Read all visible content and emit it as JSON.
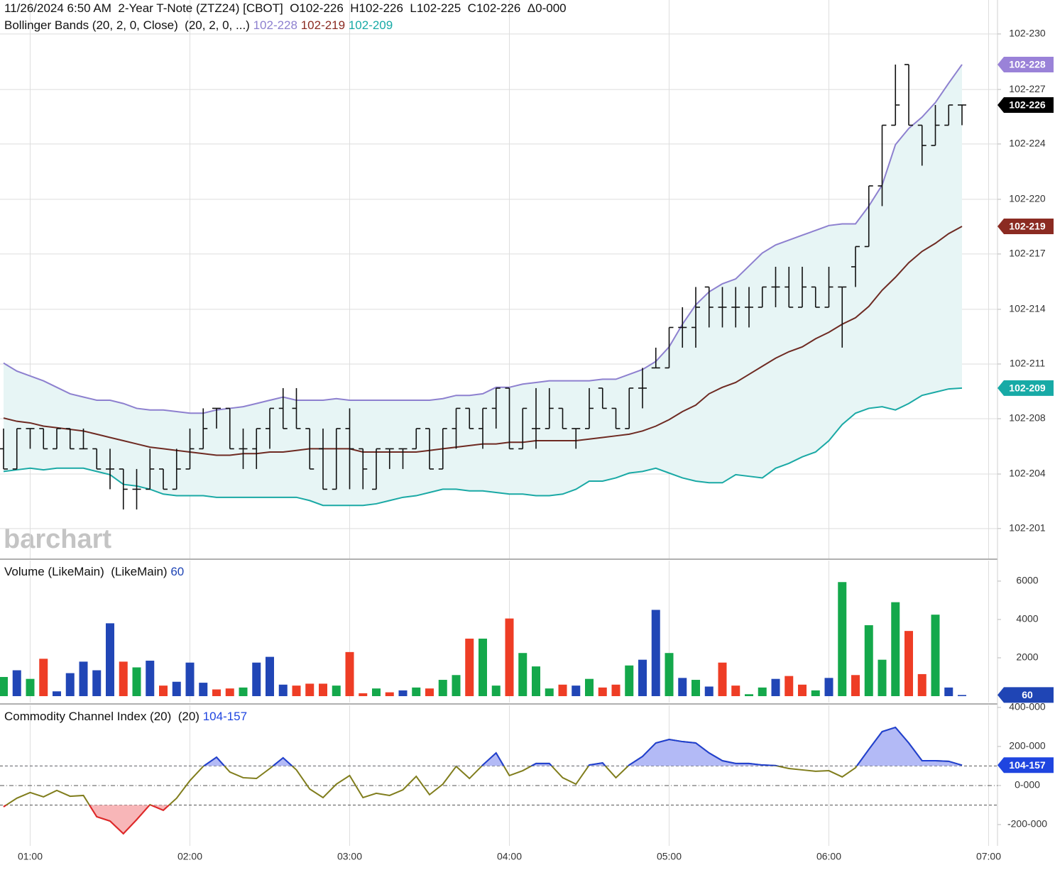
{
  "chart_data": [
    {
      "type": "ohlc",
      "title": "11/26/2024 6:50 AM  2-Year T-Note (ZTZ24) [CBOT]  O102-226  H102-226  L102-225  C102-226  Δ0-000",
      "subtitle": "Bollinger Bands (20, 2, 0, Close)  (20, 2, 0, ...)",
      "watermark": "barchart",
      "x": [
        50,
        55,
        60,
        65,
        70,
        75,
        80,
        85,
        90,
        95,
        100,
        105,
        110,
        115,
        120,
        125,
        130,
        135,
        140,
        145,
        150,
        155,
        160,
        165,
        170,
        175,
        180,
        185,
        190,
        195,
        200,
        205,
        210,
        215,
        220,
        225,
        230,
        235,
        240,
        245,
        250,
        255,
        260,
        265,
        270,
        275,
        280,
        285,
        290,
        295,
        300,
        305,
        310,
        315,
        320,
        325,
        330,
        335,
        340,
        345,
        350,
        355,
        360,
        365,
        370,
        375,
        380,
        385,
        390,
        395,
        400,
        405,
        410
      ],
      "xlim": [
        48.667,
        423.333
      ],
      "xticks": [
        {
          "value": 60,
          "label": "01:00"
        },
        {
          "value": 120,
          "label": "02:00"
        },
        {
          "value": 180,
          "label": "03:00"
        },
        {
          "value": 240,
          "label": "04:00"
        },
        {
          "value": 300,
          "label": "05:00"
        },
        {
          "value": 360,
          "label": "06:00"
        },
        {
          "value": 420,
          "label": "07:00"
        }
      ],
      "open": [
        20.5,
        20.375,
        20.625,
        20.625,
        20.5,
        20.625,
        20.5,
        20.5,
        20.375,
        20.375,
        20.25,
        20.25,
        20.375,
        20.25,
        20.375,
        20.5,
        20.75,
        20.75,
        20.5,
        20.5,
        20.625,
        20.75,
        20.75,
        20.625,
        20.5,
        20.25,
        20.625,
        20.5,
        20.25,
        20.5,
        20.5,
        20.5,
        20.625,
        20.375,
        20.625,
        20.75,
        20.625,
        20.75,
        20.875,
        20.5,
        20.625,
        20.625,
        20.75,
        20.625,
        20.625,
        20.875,
        20.75,
        20.625,
        20.875,
        21.0,
        21.0,
        21.25,
        21.25,
        21.5,
        21.375,
        21.375,
        21.375,
        21.375,
        21.5,
        21.5,
        21.375,
        21.5,
        21.375,
        21.5,
        21.625,
        21.75,
        22.125,
        22.5,
        22.875,
        22.5,
        22.375,
        22.5,
        22.625
      ],
      "high": [
        20.625,
        20.625,
        20.625,
        20.625,
        20.625,
        20.625,
        20.625,
        20.5,
        20.5,
        20.375,
        20.375,
        20.5,
        20.375,
        20.5,
        20.625,
        20.75,
        20.75,
        20.75,
        20.625,
        20.625,
        20.75,
        20.875,
        20.875,
        20.625,
        20.625,
        20.625,
        20.75,
        20.5,
        20.5,
        20.5,
        20.5,
        20.625,
        20.625,
        20.625,
        20.75,
        20.75,
        20.75,
        20.875,
        20.875,
        20.75,
        20.875,
        20.875,
        20.75,
        20.625,
        20.875,
        20.875,
        20.75,
        20.875,
        21.0,
        21.125,
        21.25,
        21.375,
        21.5,
        21.5,
        21.5,
        21.5,
        21.5,
        21.5,
        21.625,
        21.625,
        21.625,
        21.5,
        21.625,
        21.5,
        21.75,
        22.125,
        22.5,
        22.875,
        22.875,
        22.5,
        22.625,
        22.625,
        22.625
      ],
      "low": [
        20.375,
        20.375,
        20.5,
        20.5,
        20.5,
        20.5,
        20.5,
        20.375,
        20.25,
        20.125,
        20.125,
        20.25,
        20.25,
        20.25,
        20.375,
        20.5,
        20.625,
        20.5,
        20.375,
        20.375,
        20.5,
        20.625,
        20.625,
        20.375,
        20.25,
        20.25,
        20.25,
        20.25,
        20.25,
        20.375,
        20.375,
        20.5,
        20.375,
        20.375,
        20.5,
        20.625,
        20.5,
        20.625,
        20.5,
        20.5,
        20.5,
        20.625,
        20.625,
        20.5,
        20.625,
        20.75,
        20.625,
        20.625,
        20.75,
        21.0,
        21.0,
        21.125,
        21.125,
        21.25,
        21.25,
        21.25,
        21.25,
        21.375,
        21.375,
        21.375,
        21.375,
        21.375,
        21.375,
        21.125,
        21.5,
        21.75,
        22.0,
        22.5,
        22.5,
        22.25,
        22.375,
        22.5,
        22.5
      ],
      "close": [
        20.375,
        20.625,
        20.625,
        20.5,
        20.625,
        20.5,
        20.5,
        20.375,
        20.375,
        20.25,
        20.25,
        20.375,
        20.25,
        20.375,
        20.5,
        20.625,
        20.75,
        20.5,
        20.5,
        20.625,
        20.75,
        20.625,
        20.625,
        20.375,
        20.25,
        20.625,
        20.5,
        20.375,
        20.5,
        20.5,
        20.5,
        20.625,
        20.375,
        20.625,
        20.75,
        20.625,
        20.75,
        20.875,
        20.5,
        20.75,
        20.625,
        20.75,
        20.625,
        20.625,
        20.75,
        20.75,
        20.625,
        20.875,
        20.875,
        21.0,
        21.25,
        21.25,
        21.375,
        21.375,
        21.375,
        21.375,
        21.375,
        21.5,
        21.5,
        21.375,
        21.5,
        21.375,
        21.5,
        21.5,
        21.75,
        22.125,
        22.5,
        22.625,
        22.5,
        22.375,
        22.5,
        22.625,
        22.625
      ],
      "color": "#111111",
      "last_label": "102-226",
      "last_color": "#000000",
      "band_fill": "#e7f5f5",
      "overlays": [
        {
          "color": "#8d80cf",
          "last_label": "102-228",
          "badge_color": "#9a82d8",
          "values": [
            21.03,
            20.98,
            20.95,
            20.92,
            20.88,
            20.84,
            20.82,
            20.8,
            20.8,
            20.78,
            20.75,
            20.74,
            20.74,
            20.73,
            20.72,
            20.72,
            20.74,
            20.75,
            20.76,
            20.78,
            20.8,
            20.82,
            20.8,
            20.8,
            20.8,
            20.81,
            20.8,
            20.8,
            20.8,
            20.8,
            20.8,
            20.8,
            20.8,
            20.81,
            20.83,
            20.83,
            20.84,
            20.88,
            20.88,
            20.9,
            20.91,
            20.92,
            20.92,
            20.92,
            20.92,
            20.93,
            20.93,
            20.96,
            20.99,
            21.04,
            21.13,
            21.27,
            21.39,
            21.47,
            21.52,
            21.55,
            21.63,
            21.71,
            21.76,
            21.79,
            21.82,
            21.85,
            21.88,
            21.89,
            21.89,
            22.0,
            22.13,
            22.38,
            22.48,
            22.55,
            22.64,
            22.76,
            22.875
          ]
        },
        {
          "color": "#6e2a22",
          "last_label": "102-219",
          "badge_color": "#8b2b22",
          "values": [
            20.69,
            20.67,
            20.66,
            20.64,
            20.63,
            20.62,
            20.61,
            20.59,
            20.57,
            20.55,
            20.53,
            20.51,
            20.5,
            20.49,
            20.48,
            20.47,
            20.46,
            20.46,
            20.47,
            20.47,
            20.48,
            20.48,
            20.49,
            20.5,
            20.5,
            20.5,
            20.5,
            20.48,
            20.48,
            20.48,
            20.48,
            20.48,
            20.49,
            20.5,
            20.51,
            20.52,
            20.53,
            20.53,
            20.54,
            20.54,
            20.55,
            20.55,
            20.55,
            20.55,
            20.56,
            20.57,
            20.58,
            20.59,
            20.61,
            20.64,
            20.68,
            20.73,
            20.77,
            20.84,
            20.88,
            20.91,
            20.96,
            21.01,
            21.06,
            21.1,
            21.13,
            21.18,
            21.22,
            21.27,
            21.31,
            21.38,
            21.48,
            21.56,
            21.65,
            21.72,
            21.77,
            21.83,
            21.875
          ]
        },
        {
          "color": "#1aa9a5",
          "last_label": "102-209",
          "badge_color": "#17aaa6",
          "values": [
            20.36,
            20.37,
            20.38,
            20.37,
            20.38,
            20.38,
            20.38,
            20.36,
            20.34,
            20.28,
            20.27,
            20.25,
            20.22,
            20.21,
            20.21,
            20.21,
            20.2,
            20.2,
            20.2,
            20.2,
            20.2,
            20.2,
            20.2,
            20.18,
            20.15,
            20.15,
            20.15,
            20.15,
            20.16,
            20.18,
            20.2,
            20.21,
            20.23,
            20.25,
            20.25,
            20.24,
            20.24,
            20.23,
            20.22,
            20.22,
            20.21,
            20.21,
            20.22,
            20.25,
            20.3,
            20.3,
            20.32,
            20.35,
            20.36,
            20.38,
            20.35,
            20.32,
            20.3,
            20.29,
            20.29,
            20.34,
            20.33,
            20.32,
            20.38,
            20.41,
            20.45,
            20.48,
            20.55,
            20.65,
            20.72,
            20.75,
            20.76,
            20.74,
            20.78,
            20.83,
            20.85,
            20.87,
            20.875
          ]
        }
      ],
      "ylim": [
        19.822,
        23.274
      ],
      "yticks": [
        {
          "value": 23.064,
          "label": "102-230"
        },
        {
          "value": 22.721,
          "label": "102-227"
        },
        {
          "value": 22.384,
          "label": "102-224"
        },
        {
          "value": 22.042,
          "label": "102-220"
        },
        {
          "value": 21.704,
          "label": "102-217"
        },
        {
          "value": 21.362,
          "label": "102-214"
        },
        {
          "value": 21.024,
          "label": "102-211"
        },
        {
          "value": 20.686,
          "label": "102-208"
        },
        {
          "value": 20.344,
          "label": "102-204"
        },
        {
          "value": 20.007,
          "label": "102-201"
        }
      ],
      "grid": true
    },
    {
      "type": "bar",
      "title": "Volume (LikeMain)  (LikeMain)",
      "values": [
        1000,
        1350,
        900,
        1950,
        250,
        1200,
        1800,
        1350,
        3800,
        1800,
        1500,
        1850,
        550,
        750,
        1750,
        700,
        350,
        400,
        450,
        1750,
        2050,
        600,
        550,
        650,
        650,
        550,
        2300,
        150,
        400,
        200,
        300,
        450,
        400,
        850,
        1100,
        3000,
        3000,
        550,
        4050,
        2250,
        1550,
        400,
        600,
        550,
        900,
        450,
        600,
        1600,
        1900,
        4500,
        2250,
        950,
        850,
        500,
        1750,
        550,
        100,
        450,
        900,
        1050,
        600,
        300,
        950,
        5950,
        1100,
        3700,
        1900,
        4900,
        3400,
        1150,
        4250,
        450,
        60
      ],
      "colors": [
        "#14a84b",
        "#2146b6",
        "#14a84b",
        "#ee3d25",
        "#2146b6",
        "#2146b6",
        "#2146b6",
        "#2146b6",
        "#2146b6",
        "#ee3d25",
        "#14a84b",
        "#2146b6",
        "#ee3d25",
        "#2146b6",
        "#2146b6",
        "#2146b6",
        "#ee3d25",
        "#ee3d25",
        "#14a84b",
        "#2146b6",
        "#2146b6",
        "#2146b6",
        "#ee3d25",
        "#ee3d25",
        "#ee3d25",
        "#14a84b",
        "#ee3d25",
        "#ee3d25",
        "#14a84b",
        "#ee3d25",
        "#2146b6",
        "#14a84b",
        "#ee3d25",
        "#14a84b",
        "#14a84b",
        "#ee3d25",
        "#14a84b",
        "#14a84b",
        "#ee3d25",
        "#14a84b",
        "#14a84b",
        "#14a84b",
        "#ee3d25",
        "#2146b6",
        "#14a84b",
        "#ee3d25",
        "#ee3d25",
        "#14a84b",
        "#2146b6",
        "#2146b6",
        "#14a84b",
        "#2146b6",
        "#14a84b",
        "#2146b6",
        "#ee3d25",
        "#ee3d25",
        "#14a84b",
        "#14a84b",
        "#2146b6",
        "#ee3d25",
        "#ee3d25",
        "#14a84b",
        "#2146b6",
        "#14a84b",
        "#ee3d25",
        "#14a84b",
        "#14a84b",
        "#14a84b",
        "#ee3d25",
        "#ee3d25",
        "#14a84b",
        "#2146b6",
        "#2146b6"
      ],
      "last_color": "#1f45b5",
      "ylim": [
        0,
        6700
      ],
      "yticks": [
        2000,
        4000,
        6000
      ],
      "grid": false
    },
    {
      "type": "line",
      "title": "Commodity Channel Index (20)  (20)",
      "values": [
        -109,
        -65,
        -36,
        -58,
        -25,
        -55,
        -51,
        -160,
        -182,
        -247,
        -175,
        -98,
        -127,
        -65,
        25,
        98,
        145,
        69,
        40,
        36,
        87,
        142,
        80,
        -18,
        -62,
        7,
        51,
        -62,
        -40,
        -51,
        -22,
        47,
        -47,
        7,
        98,
        36,
        105,
        167,
        51,
        76,
        113,
        113,
        40,
        7,
        105,
        116,
        40,
        105,
        149,
        218,
        236,
        225,
        218,
        167,
        127,
        113,
        113,
        105,
        102,
        87,
        80,
        73,
        76,
        44,
        91,
        185,
        276,
        298,
        218,
        127,
        127,
        124,
        104.157
      ],
      "last_label": "104-157",
      "colors": {
        "line": "#807d1c",
        "above": "#1f3fd6",
        "below": "#e3242b",
        "above_fill": "#b3baf6",
        "below_fill": "#f8b6b8",
        "badge": "#1f45e0"
      },
      "levels": [
        -100,
        0,
        100
      ],
      "ylim": [
        -302,
        407
      ],
      "yticks": [
        {
          "value": 400,
          "label": "400-000"
        },
        {
          "value": 200,
          "label": "200-000"
        },
        {
          "value": 0,
          "label": "0-000"
        },
        {
          "value": -200,
          "label": "-200-000"
        }
      ],
      "grid": false
    }
  ]
}
